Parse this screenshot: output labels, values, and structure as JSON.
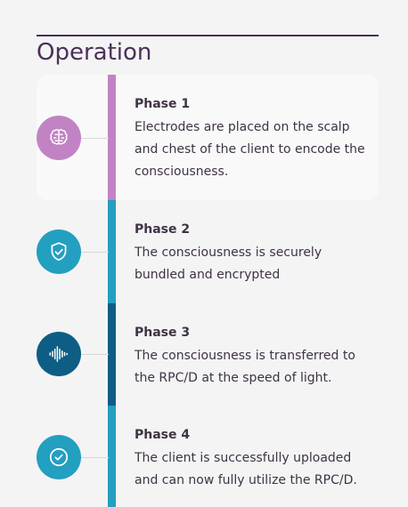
{
  "section": {
    "title": "Operation"
  },
  "phases": [
    {
      "title": "Phase 1",
      "desc": "Electrodes are placed on the scalp and chest of the client to encode the consciousness.",
      "icon": "brain-icon",
      "color": "#c283c4"
    },
    {
      "title": "Phase 2",
      "desc": "The consciousness is securely bundled and encrypted",
      "icon": "shield-check-icon",
      "color": "#239fc0"
    },
    {
      "title": "Phase 3",
      "desc": "The consciousness is transferred to the RPC/D at the speed of light.",
      "icon": "sound-wave-icon",
      "color": "#0e5d84"
    },
    {
      "title": "Phase 4",
      "desc": "The client is successfully uploaded and can now fully utilize the RPC/D.",
      "icon": "check-circle-icon",
      "color": "#239fc0"
    }
  ]
}
